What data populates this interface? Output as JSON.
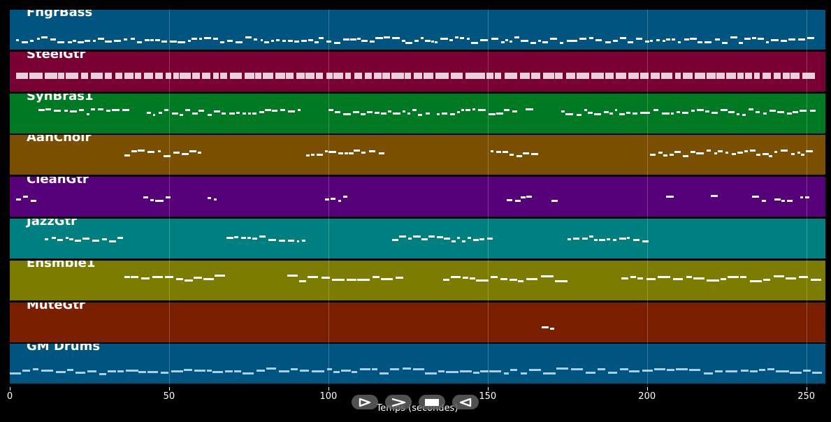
{
  "tracks": [
    {
      "name": "FngrBass",
      "color": "#005580"
    },
    {
      "name": "SteelGtr",
      "color": "#7a0034"
    },
    {
      "name": "SynBras1",
      "color": "#007a22"
    },
    {
      "name": "AahChoir",
      "color": "#7a5000"
    },
    {
      "name": "CleanGtr",
      "color": "#56007a"
    },
    {
      "name": "JazzGtr",
      "color": "#007f80"
    },
    {
      "name": "Ensmble1",
      "color": "#7c7c00"
    },
    {
      "name": "MuteGtr",
      "color": "#7a2000"
    },
    {
      "name": "GM Drums",
      "color": "#005580"
    }
  ],
  "axis": {
    "xlabel": "Temps (secondes)",
    "xlim": [
      0,
      256
    ],
    "ticks": [
      {
        "value": 0,
        "label": "0"
      },
      {
        "value": 50,
        "label": "50"
      },
      {
        "value": 100,
        "label": "100"
      },
      {
        "value": 150,
        "label": "150"
      },
      {
        "value": 200,
        "label": "200"
      },
      {
        "value": 250,
        "label": "250"
      }
    ]
  },
  "controls": [
    {
      "name": "play-button",
      "icon": "play-icon"
    },
    {
      "name": "forward-button",
      "icon": "forward-icon"
    },
    {
      "name": "stop-button",
      "icon": "stop-icon"
    },
    {
      "name": "rewind-button",
      "icon": "rewind-icon"
    }
  ],
  "activity": [
    [
      [
        2,
        252
      ]
    ],
    [
      [
        2,
        252
      ]
    ],
    [
      [
        9,
        36
      ],
      [
        43,
        92
      ],
      [
        100,
        132
      ],
      [
        134,
        159
      ],
      [
        162,
        164
      ],
      [
        173,
        252
      ]
    ],
    [
      [
        36,
        60
      ],
      [
        93,
        117
      ],
      [
        151,
        164
      ],
      [
        201,
        252
      ]
    ],
    [
      [
        2,
        8
      ],
      [
        42,
        50
      ],
      [
        62,
        65
      ],
      [
        99,
        106
      ],
      [
        156,
        164
      ],
      [
        170,
        172
      ],
      [
        206,
        208
      ],
      [
        220,
        222
      ],
      [
        233,
        236
      ],
      [
        240,
        244
      ],
      [
        248,
        250
      ]
    ],
    [
      [
        11,
        36
      ],
      [
        68,
        93
      ],
      [
        120,
        150
      ],
      [
        175,
        200
      ]
    ],
    [
      [
        36,
        65
      ],
      [
        87,
        122
      ],
      [
        136,
        172
      ],
      [
        192,
        252
      ]
    ],
    [
      [
        167,
        170
      ]
    ],
    [
      [
        0,
        252
      ]
    ]
  ]
}
